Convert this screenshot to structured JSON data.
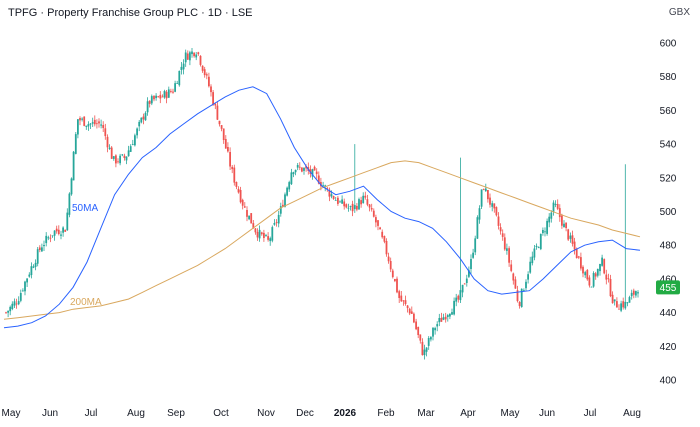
{
  "header": {
    "title": "TPFG · Property Franchise Group PLC · 1D · LSE",
    "currency": "GBX"
  },
  "chart_data": {
    "type": "candlestick",
    "title": "TPFG · Property Franchise Group PLC · 1D · LSE",
    "y_unit": "GBX",
    "ylim": [
      395,
      610
    ],
    "y_ticks": [
      400,
      420,
      440,
      460,
      480,
      500,
      520,
      540,
      560,
      580,
      600
    ],
    "x_ticks": [
      {
        "label": "May",
        "bold": false
      },
      {
        "label": "Jun",
        "bold": false
      },
      {
        "label": "Jul",
        "bold": false
      },
      {
        "label": "Aug",
        "bold": false
      },
      {
        "label": "Sep",
        "bold": false
      },
      {
        "label": "Oct",
        "bold": false
      },
      {
        "label": "Nov",
        "bold": false
      },
      {
        "label": "Dec",
        "bold": false
      },
      {
        "label": "2026",
        "bold": true
      },
      {
        "label": "Feb",
        "bold": false
      },
      {
        "label": "Mar",
        "bold": false
      },
      {
        "label": "Apr",
        "bold": false
      },
      {
        "label": "May",
        "bold": false
      },
      {
        "label": "Jun",
        "bold": false
      },
      {
        "label": "Jul",
        "bold": false
      },
      {
        "label": "Aug",
        "bold": false
      }
    ],
    "grid": false,
    "last_price": 455,
    "colors": {
      "up": "#26a69a",
      "down": "#ef5350",
      "ma50": "#2962ff",
      "ma200": "#d9a85f",
      "last_price_bg": "#22ab44"
    },
    "series": [
      {
        "name": "50MA",
        "values": [
          431,
          432,
          434,
          438,
          445,
          455,
          470,
          490,
          510,
          522,
          532,
          538,
          546,
          552,
          558,
          563,
          568,
          572,
          574,
          570,
          555,
          538,
          525,
          515,
          510,
          512,
          515,
          507,
          500,
          496,
          494,
          490,
          482,
          472,
          460,
          453,
          451,
          452,
          453,
          460,
          468,
          476,
          480,
          482,
          483,
          478,
          477
        ]
      },
      {
        "name": "200MA",
        "values": [
          436,
          437,
          438,
          439,
          440,
          442,
          443,
          444,
          446,
          448,
          452,
          456,
          460,
          464,
          468,
          473,
          478,
          484,
          490,
          496,
          502,
          506,
          510,
          514,
          517,
          520,
          523,
          526,
          529,
          530,
          529,
          526,
          523,
          520,
          517,
          514,
          511,
          508,
          505,
          502,
          499,
          496,
          494,
          492,
          489,
          487,
          485
        ]
      },
      {
        "name": "close",
        "values": [
          440,
          448,
          465,
          480,
          488,
          490,
          555,
          552,
          552,
          530,
          532,
          548,
          565,
          568,
          572,
          592,
          596,
          575,
          550,
          522,
          502,
          488,
          482,
          500,
          526,
          525,
          521,
          512,
          505,
          501,
          508,
          494,
          474,
          448,
          440,
          415,
          432,
          440,
          448,
          470,
          516,
          498,
          476,
          445,
          470,
          487,
          504,
          488,
          472,
          457,
          470,
          445,
          445,
          455
        ]
      }
    ],
    "annotations": [
      {
        "text": "50MA",
        "color": "#2962ff"
      },
      {
        "text": "200MA",
        "color": "#d9a85f"
      }
    ]
  }
}
